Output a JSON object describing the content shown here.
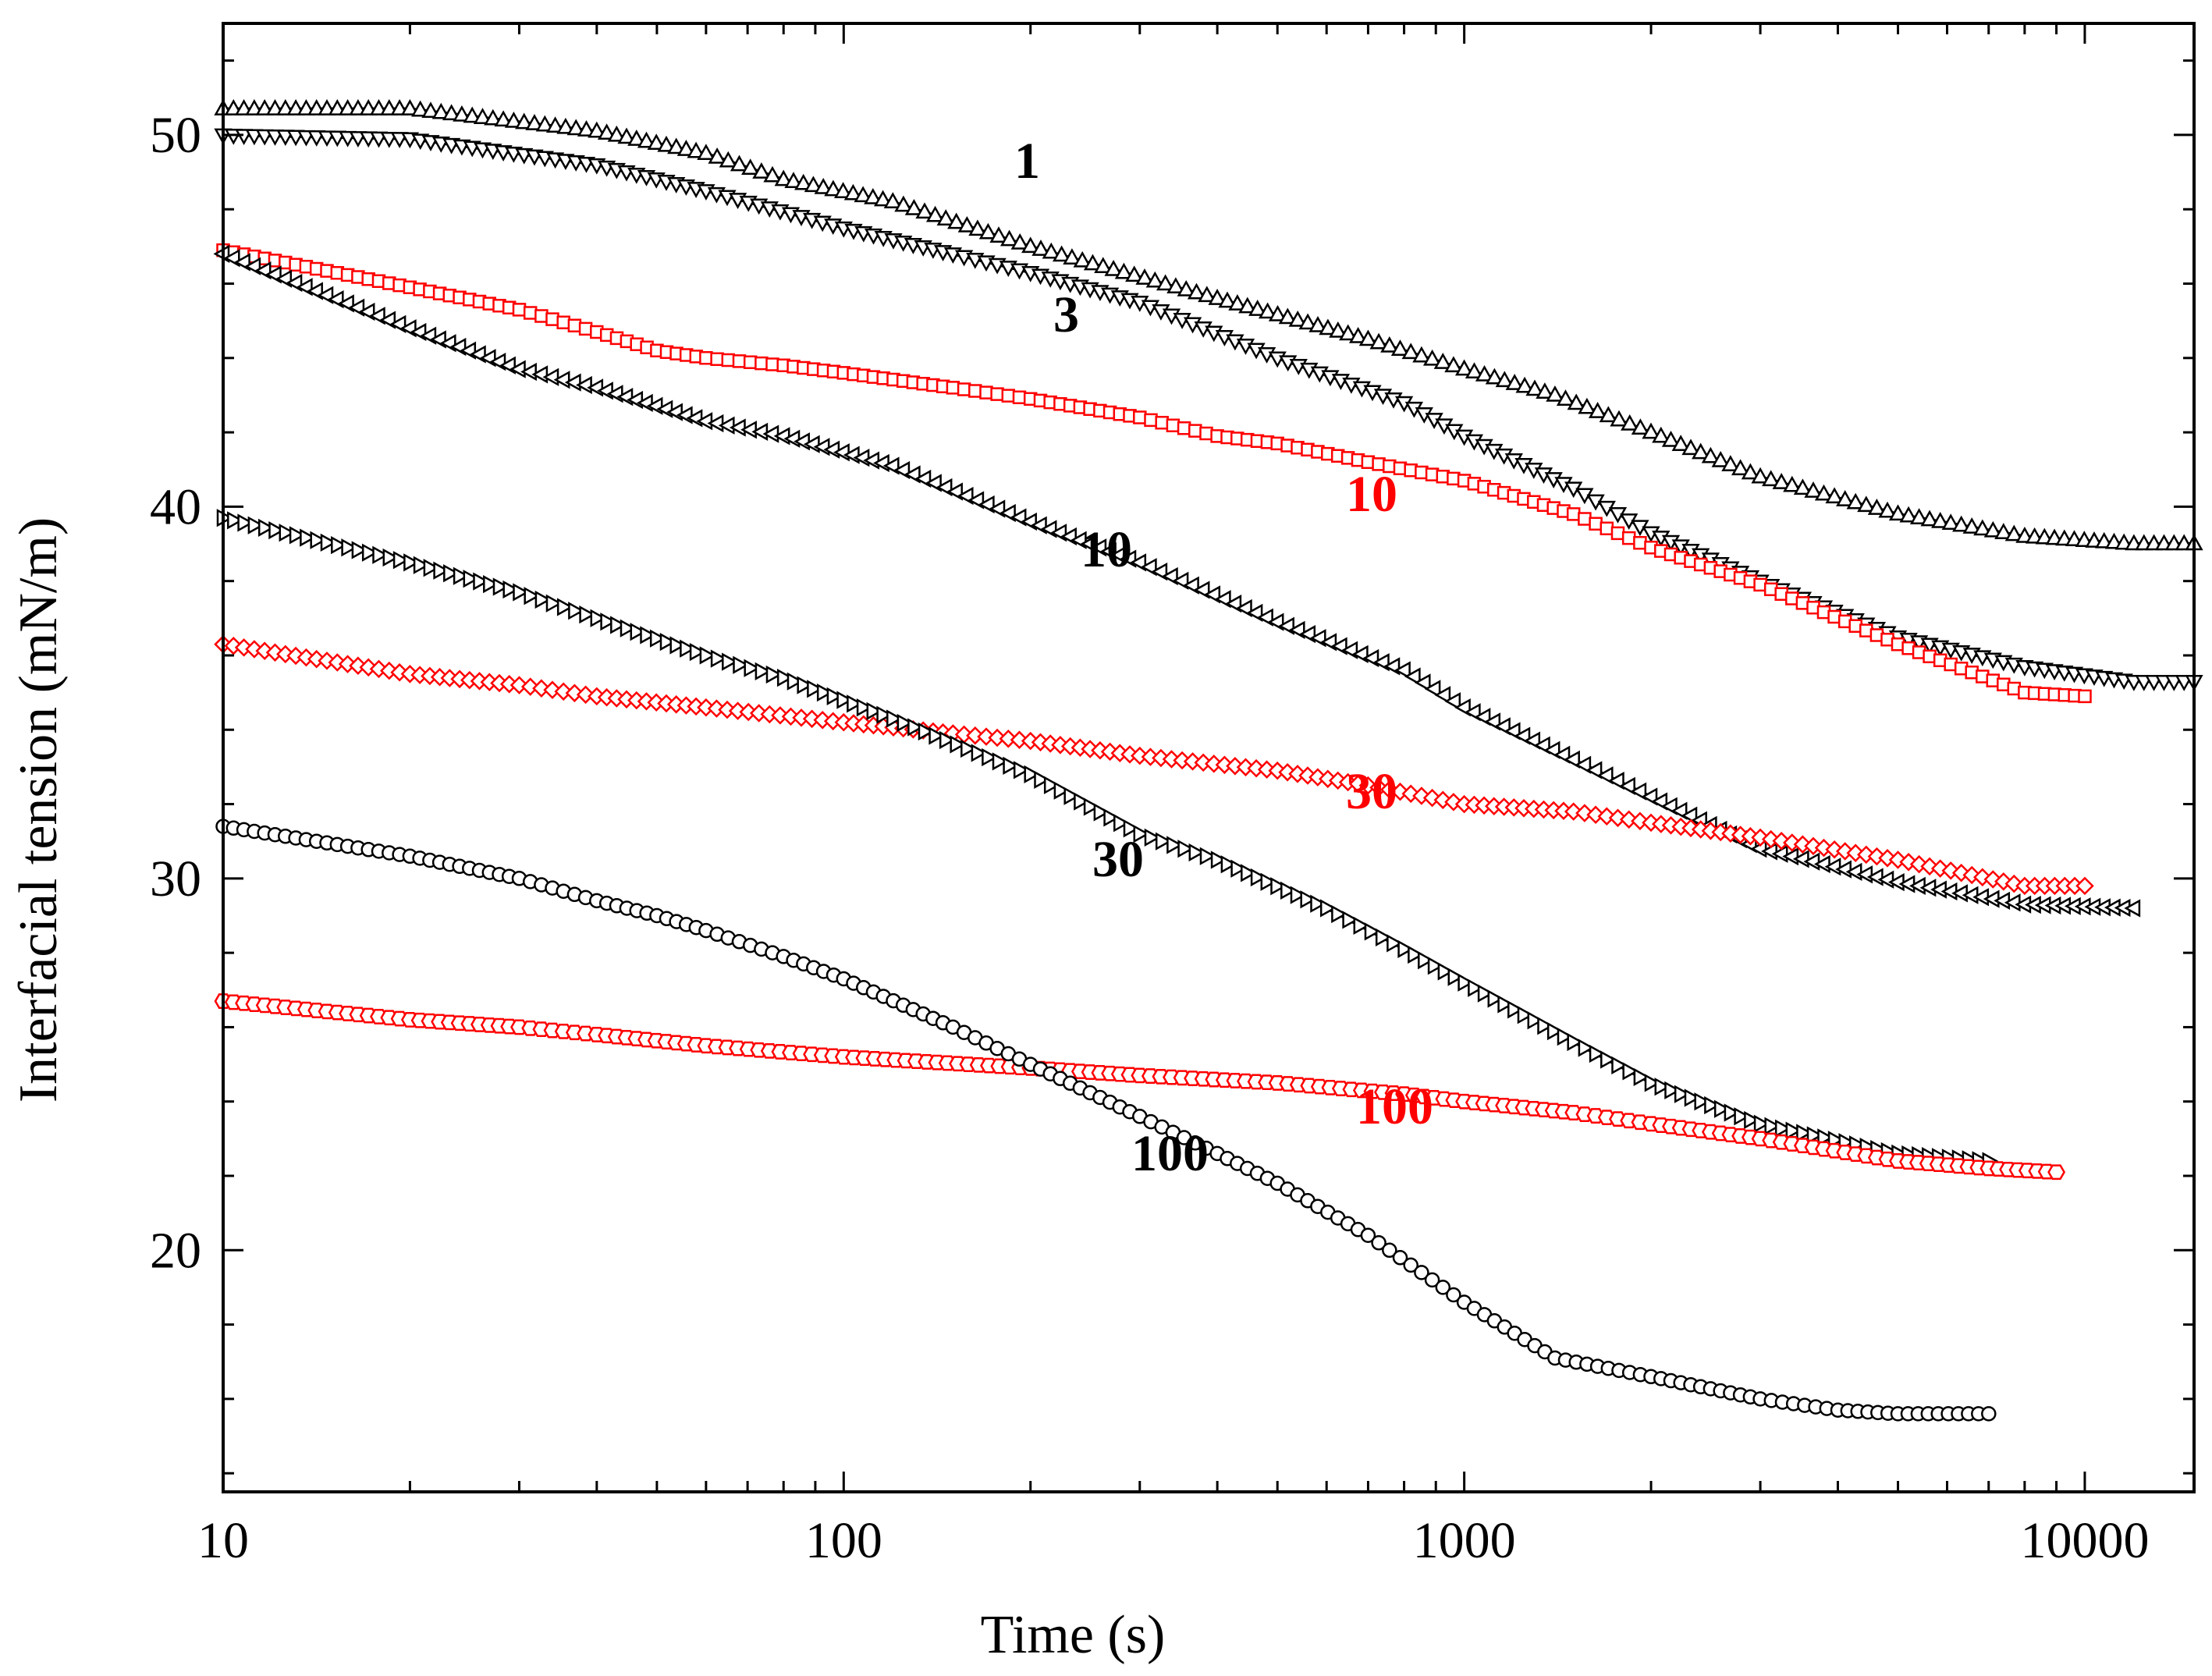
{
  "chart_data": {
    "type": "line",
    "title": "",
    "xlabel": "Time (s)",
    "ylabel": "Interfacial tension (mN/m)",
    "xscale": "log",
    "xlim": [
      10,
      15000
    ],
    "ylim": [
      13.5,
      53
    ],
    "x_ticks": [
      10,
      100,
      1000,
      10000
    ],
    "x_tick_labels": [
      "10",
      "100",
      "1000",
      "10000"
    ],
    "y_ticks": [
      20,
      30,
      40,
      50
    ],
    "y_tick_labels": [
      "20",
      "30",
      "40",
      "50"
    ],
    "grid": false,
    "legend": "none (curves labeled inline)",
    "series": [
      {
        "name": "1",
        "color": "#000000",
        "marker": "triangle-up",
        "label_text": "1",
        "x": [
          10,
          20,
          40,
          60,
          80,
          120,
          200,
          400,
          700,
          1000,
          1400,
          2000,
          3000,
          5000,
          8000,
          12000,
          15000
        ],
        "y": [
          50.7,
          50.7,
          50.1,
          49.5,
          48.8,
          48.2,
          47.0,
          45.6,
          44.5,
          43.7,
          43.0,
          42.0,
          40.8,
          39.8,
          39.2,
          39.0,
          39.0
        ]
      },
      {
        "name": "3",
        "color": "#000000",
        "marker": "triangle-down",
        "label_text": "3",
        "x": [
          10,
          20,
          40,
          60,
          100,
          150,
          200,
          300,
          500,
          800,
          1000,
          1500,
          2000,
          3000,
          5000,
          8000,
          12000,
          15000
        ],
        "y": [
          50.0,
          49.9,
          49.2,
          48.5,
          47.5,
          46.8,
          46.3,
          45.5,
          44.0,
          42.8,
          41.9,
          40.5,
          39.3,
          38.0,
          36.5,
          35.7,
          35.3,
          35.3
        ]
      },
      {
        "name": "10",
        "color": "#ff0000",
        "marker": "square",
        "label_text": "10",
        "x": [
          10,
          20,
          30,
          40,
          50,
          60,
          80,
          100,
          150,
          200,
          300,
          400,
          500,
          700,
          1000,
          1500,
          2000,
          3000,
          5000,
          8000,
          10000
        ],
        "y": [
          46.9,
          45.9,
          45.3,
          44.7,
          44.2,
          44.0,
          43.8,
          43.6,
          43.2,
          42.9,
          42.4,
          41.9,
          41.7,
          41.2,
          40.7,
          39.8,
          38.9,
          37.9,
          36.3,
          35.0,
          34.9
        ]
      },
      {
        "name": "10",
        "color": "#000000",
        "marker": "triangle-left",
        "label_text": "10",
        "x": [
          10,
          20,
          30,
          40,
          60,
          80,
          120,
          200,
          300,
          500,
          800,
          1000,
          1500,
          2000,
          3000,
          5000,
          8000,
          12000
        ],
        "y": [
          46.8,
          44.8,
          43.7,
          43.2,
          42.3,
          41.9,
          41.1,
          39.6,
          38.5,
          36.9,
          35.6,
          34.6,
          33.2,
          32.2,
          30.8,
          29.9,
          29.3,
          29.2
        ]
      },
      {
        "name": "30",
        "color": "#ff0000",
        "marker": "diamond",
        "label_text": "30",
        "x": [
          10,
          20,
          30,
          40,
          60,
          100,
          150,
          200,
          300,
          500,
          700,
          1000,
          1500,
          2000,
          3000,
          5000,
          8000,
          10000
        ],
        "y": [
          36.3,
          35.5,
          35.2,
          34.9,
          34.6,
          34.2,
          33.9,
          33.7,
          33.3,
          32.9,
          32.5,
          32.0,
          31.8,
          31.5,
          31.1,
          30.5,
          29.8,
          29.8
        ]
      },
      {
        "name": "30",
        "color": "#000000",
        "marker": "triangle-right",
        "label_text": "30",
        "x": [
          10,
          20,
          30,
          40,
          60,
          80,
          120,
          200,
          300,
          400,
          600,
          800,
          1000,
          1500,
          2000,
          3000,
          5000,
          7000
        ],
        "y": [
          39.7,
          38.5,
          37.7,
          37.0,
          36.0,
          35.4,
          34.3,
          32.8,
          31.2,
          30.5,
          29.2,
          28.1,
          27.2,
          25.6,
          24.5,
          23.4,
          22.6,
          22.4
        ]
      },
      {
        "name": "100",
        "color": "#ff0000",
        "marker": "hexagon",
        "label_text": "100",
        "x": [
          10,
          20,
          30,
          40,
          60,
          100,
          200,
          300,
          500,
          800,
          1000,
          1500,
          2000,
          3000,
          5000,
          7000,
          9000
        ],
        "y": [
          26.7,
          26.2,
          26.0,
          25.8,
          25.5,
          25.2,
          24.9,
          24.7,
          24.5,
          24.2,
          24.0,
          23.7,
          23.4,
          23.0,
          22.4,
          22.2,
          22.1
        ]
      },
      {
        "name": "100",
        "color": "#000000",
        "marker": "circle",
        "label_text": "100",
        "x": [
          10,
          20,
          30,
          40,
          50,
          60,
          80,
          100,
          150,
          200,
          300,
          400,
          500,
          700,
          1000,
          1400,
          2000,
          3000,
          4000,
          5000,
          7000
        ],
        "y": [
          31.4,
          30.6,
          30.0,
          29.4,
          29.0,
          28.6,
          27.9,
          27.3,
          26.0,
          25.0,
          23.6,
          22.6,
          21.8,
          20.4,
          18.6,
          17.1,
          16.6,
          16.0,
          15.7,
          15.6,
          15.6
        ]
      }
    ]
  }
}
